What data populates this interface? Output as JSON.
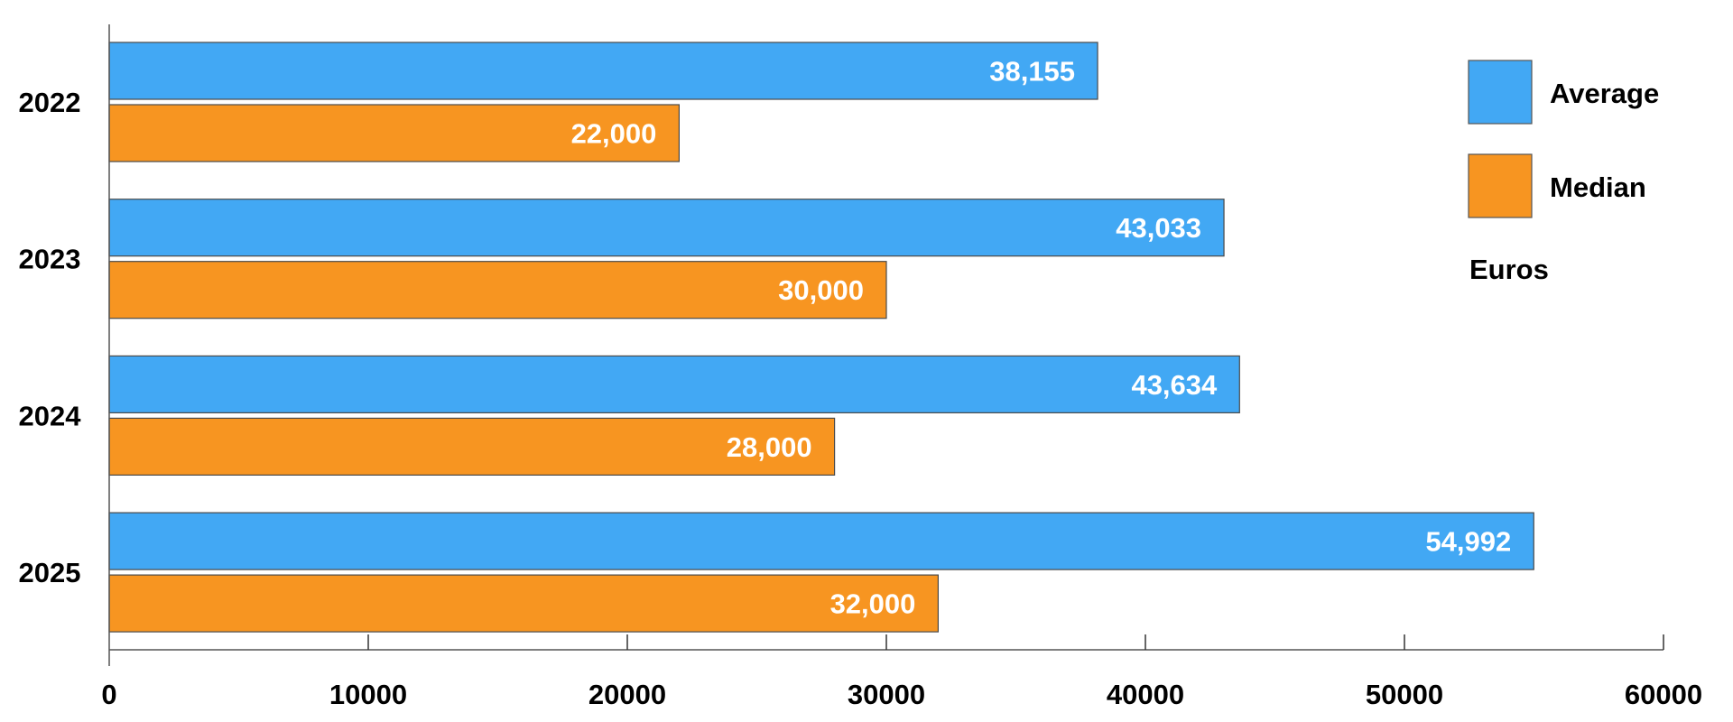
{
  "chart_data": {
    "type": "bar",
    "orientation": "horizontal",
    "title": "",
    "xlabel": "",
    "ylabel": "",
    "categories": [
      "2022",
      "2023",
      "2024",
      "2025"
    ],
    "series": [
      {
        "name": "Average",
        "color": "#42A8F4",
        "values": [
          38155,
          43033,
          43634,
          54992
        ],
        "labels": [
          "38,155",
          "43,033",
          "43,634",
          "54,992"
        ]
      },
      {
        "name": "Median",
        "color": "#F79521",
        "values": [
          22000,
          30000,
          28000,
          32000
        ],
        "labels": [
          "22,000",
          "30,000",
          "28,000",
          "32,000"
        ]
      }
    ],
    "xlim": [
      0,
      60000
    ],
    "xticks": [
      0,
      10000,
      20000,
      30000,
      40000,
      50000,
      60000
    ],
    "xtick_labels": [
      "0",
      "10000",
      "20000",
      "30000",
      "40000",
      "50000",
      "60000"
    ],
    "legend": {
      "placement": "top-right",
      "note": "Euros"
    },
    "grid": false
  }
}
